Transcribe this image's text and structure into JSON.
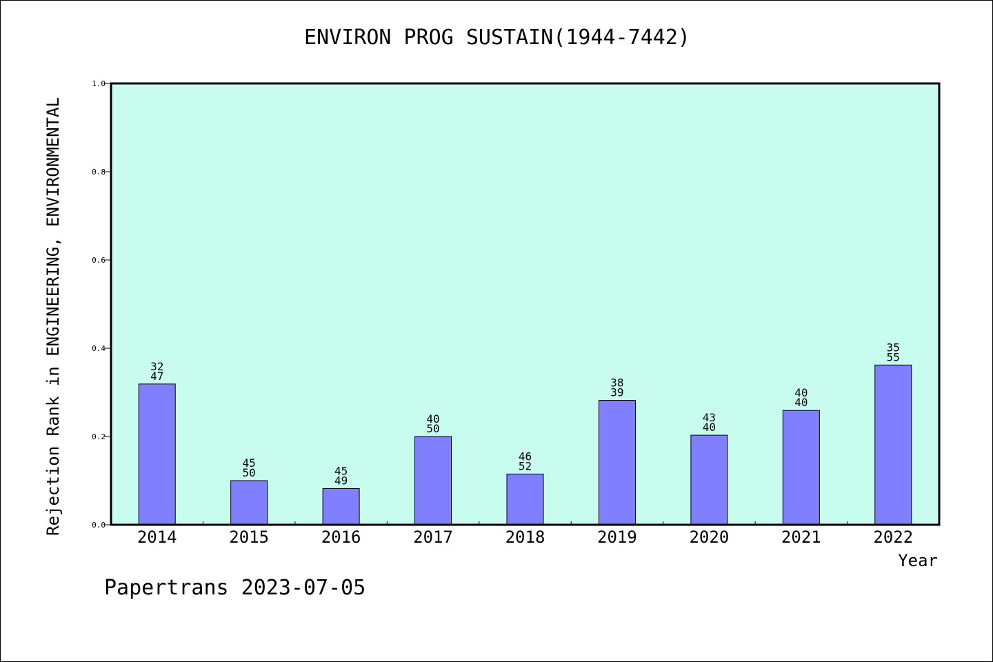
{
  "chart_data": {
    "type": "bar",
    "title": "ENVIRON PROG SUSTAIN(1944-7442)",
    "xlabel": "Year",
    "ylabel": "Rejection Rank in ENGINEERING, ENVIRONMENTAL",
    "ylim": [
      0,
      1.0
    ],
    "yticks": [
      "0.0",
      "0.2",
      "0.4",
      "0.6",
      "0.8",
      "1.0"
    ],
    "categories": [
      "2014",
      "2015",
      "2016",
      "2017",
      "2018",
      "2019",
      "2020",
      "2021",
      "2022"
    ],
    "values": [
      0.319,
      0.1,
      0.082,
      0.2,
      0.115,
      0.282,
      0.203,
      0.259,
      0.362
    ],
    "bar_labels": [
      [
        "32",
        "47"
      ],
      [
        "45",
        "50"
      ],
      [
        "45",
        "49"
      ],
      [
        "40",
        "50"
      ],
      [
        "46",
        "52"
      ],
      [
        "38",
        "39"
      ],
      [
        "43",
        "40"
      ],
      [
        "40",
        "40"
      ],
      [
        "35",
        "55"
      ]
    ],
    "grid": false,
    "colors": {
      "plot_background": "#c8fcee",
      "bar_fill": "#8080ff",
      "bar_stroke": "#000000"
    }
  },
  "footer": {
    "note": "Papertrans 2023-07-05"
  }
}
